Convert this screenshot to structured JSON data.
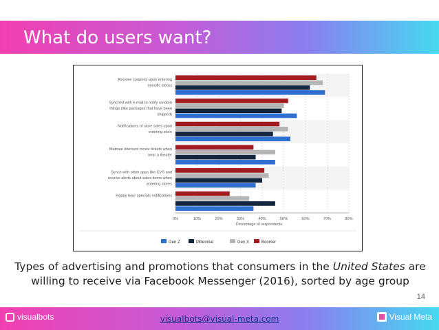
{
  "header": {
    "title": "What do users want?"
  },
  "caption": {
    "text_before": "Types of advertising and promotions that consumers in the ",
    "country": "United States",
    "text_after": " are willing to receive via Facebook Messenger (2016), sorted by age group"
  },
  "page_number": "14",
  "footer": {
    "left_brand": "visualbots",
    "email": "visualbots@visual-meta.com",
    "right_brand": "Visual Meta"
  },
  "colors": {
    "gen_z": "#2f6fd1",
    "millennial": "#14263f",
    "gen_x": "#b5b5b5",
    "boomer": "#a11d21"
  },
  "chart_data": {
    "type": "bar",
    "orientation": "horizontal",
    "categories": [
      [
        "Receive coupons upon entering",
        "specific stores"
      ],
      [
        "Synched with e-mail to notify random",
        "things (like packages that have been",
        "shipped)"
      ],
      [
        "Notifications of store sales upon",
        "entering store"
      ],
      [
        "Matinee discount movie tickets when",
        "near a theater"
      ],
      [
        "Synch with other apps like CVS and",
        "receive alerts about sales items when",
        "entering stores"
      ],
      [
        "Happy hour specials notifications"
      ]
    ],
    "series": [
      {
        "name": "Boomer",
        "values": [
          65,
          52,
          48,
          36,
          41,
          25
        ]
      },
      {
        "name": "Gen X",
        "values": [
          68,
          50,
          52,
          46,
          43,
          34
        ]
      },
      {
        "name": "Millennial",
        "values": [
          62,
          49,
          45,
          37,
          40,
          46
        ]
      },
      {
        "name": "Gen Z",
        "values": [
          69,
          56,
          53,
          46,
          37,
          36
        ]
      }
    ],
    "legend_order": [
      "Gen Z",
      "Millennial",
      "Gen X",
      "Boomer"
    ],
    "xlim": [
      0,
      80
    ],
    "xticks": [
      "0%",
      "10%",
      "20%",
      "30%",
      "40%",
      "50%",
      "60%",
      "70%",
      "80%"
    ],
    "xlabel": "Percentage of respondents",
    "legend_position": "bottom",
    "grid": true
  }
}
